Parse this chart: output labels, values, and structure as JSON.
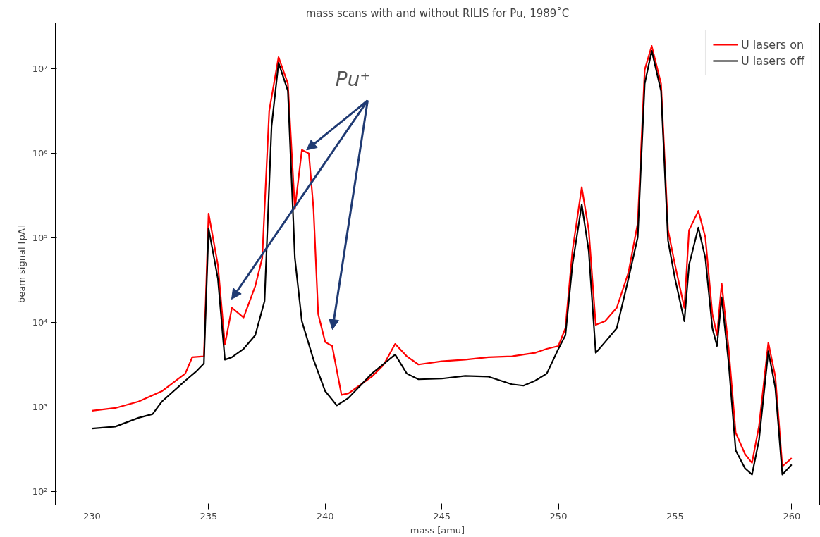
{
  "chart_data": {
    "type": "line",
    "title": "mass scans with and without RILIS for Pu, 1989˚C",
    "xlabel": "mass [amu]",
    "ylabel": "beam signal [pA]",
    "log": "y",
    "grid": false,
    "legend": "top right",
    "line_style": "solid",
    "marker": "none",
    "xlim": [
      228.43,
      261.2
    ],
    "ylim": [
      70,
      35000000
    ],
    "xticks": [
      230,
      235,
      240,
      245,
      250,
      255,
      260
    ],
    "yticks": [
      {
        "value": 100,
        "label": "10²"
      },
      {
        "value": 1000,
        "label": "10³"
      },
      {
        "value": 10000,
        "label": "10⁴"
      },
      {
        "value": 100000,
        "label": "10⁵"
      },
      {
        "value": 1000000,
        "label": "10⁶"
      },
      {
        "value": 10000000,
        "label": "10⁷"
      }
    ],
    "annotations": [
      {
        "text": "Pu⁺",
        "x": 239.2,
        "y": 1100000
      }
    ],
    "x": [
      230,
      231,
      232,
      233,
      234,
      234.3,
      234.8,
      235,
      235.4,
      235.7,
      236,
      236.5,
      237,
      237.3,
      237.6,
      238,
      238.4,
      238.7,
      239,
      239.3,
      239.5,
      239.7,
      240,
      240.3,
      240.7,
      241,
      242,
      242.5,
      243,
      243.5,
      244,
      245,
      246,
      247,
      248,
      249,
      249.5,
      250,
      250.3,
      250.6,
      251,
      251.3,
      251.6,
      252,
      252.5,
      253,
      253.4,
      253.7,
      254,
      254.4,
      254.7,
      255,
      255.4,
      255.6,
      256,
      256.3,
      256.6,
      256.8,
      257,
      257.3,
      257.6,
      258,
      258.3,
      258.6,
      259,
      259.3,
      259.6,
      260
    ],
    "series": [
      {
        "name": "U lasers on",
        "color": "#ff0000",
        "values": [
          910,
          980,
          1170,
          1550,
          2500,
          3900,
          4000,
          195000,
          48000,
          5500,
          15000,
          11500,
          27000,
          58000,
          3200000,
          13800000,
          6700000,
          220000,
          1100000,
          1000000,
          220000,
          12600,
          5900,
          5300,
          1400,
          1460,
          2300,
          3150,
          5600,
          4000,
          3200,
          3500,
          3650,
          3900,
          4000,
          4400,
          4900,
          5300,
          8600,
          70000,
          400000,
          124000,
          9400,
          10400,
          15000,
          39000,
          150000,
          9800000,
          18700000,
          6700000,
          124000,
          48000,
          15000,
          124000,
          210000,
          102000,
          12600,
          7100,
          29000,
          4900,
          500,
          280,
          220,
          600,
          5800,
          2300,
          200,
          250
        ]
      },
      {
        "name": "U lasers off",
        "color": "#000000",
        "x": [
          230,
          231,
          232,
          232.6,
          233,
          234,
          234.5,
          234.8,
          235,
          235.4,
          235.7,
          236,
          236.5,
          237,
          237.4,
          237.7,
          238,
          238.4,
          238.7,
          239,
          239.5,
          240,
          240.5,
          241,
          242,
          243,
          243.5,
          244,
          245,
          246,
          247,
          248,
          248.5,
          249,
          249.5,
          250,
          250.3,
          250.6,
          251,
          251.3,
          251.6,
          252,
          252.5,
          253,
          253.4,
          253.7,
          254,
          254.4,
          254.7,
          255,
          255.4,
          255.6,
          256,
          256.3,
          256.6,
          256.8,
          257,
          257.3,
          257.6,
          258,
          258.3,
          258.6,
          259,
          259.3,
          259.6,
          260
        ],
        "values": [
          560,
          590,
          750,
          830,
          1170,
          2060,
          2700,
          3300,
          130000,
          33000,
          3650,
          3900,
          4900,
          7100,
          18000,
          2100000,
          11800000,
          5500000,
          58000,
          10400,
          3650,
          1550,
          1050,
          1290,
          2500,
          4200,
          2500,
          2140,
          2180,
          2350,
          2300,
          1870,
          1800,
          2060,
          2500,
          4900,
          7100,
          48000,
          250000,
          70000,
          4400,
          5900,
          8600,
          33000,
          102000,
          6700000,
          16400000,
          5500000,
          93000,
          33000,
          10400,
          48000,
          133000,
          58000,
          8600,
          5300,
          20000,
          3300,
          310,
          190,
          160,
          410,
          4600,
          1700,
          160,
          210
        ]
      }
    ]
  }
}
